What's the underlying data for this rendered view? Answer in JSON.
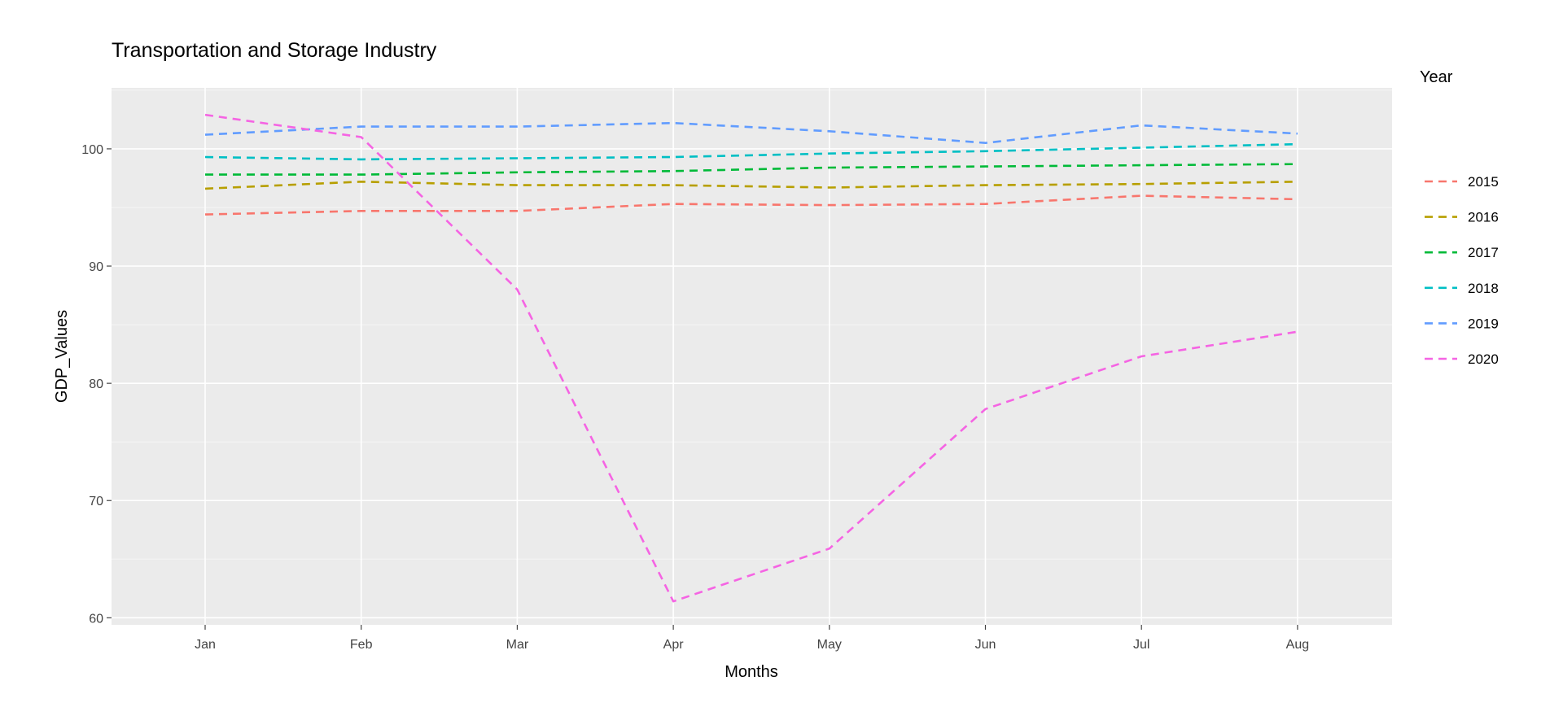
{
  "chart_data": {
    "type": "line",
    "title": "Transportation and Storage Industry",
    "xlabel": "Months",
    "ylabel": "GDP_Values",
    "categories": [
      "Jan",
      "Feb",
      "Mar",
      "Apr",
      "May",
      "Jun",
      "Jul",
      "Aug"
    ],
    "yticks": [
      60,
      70,
      80,
      90,
      100
    ],
    "ylim": [
      59.4,
      105.2
    ],
    "grid": true,
    "line_style": "dashed",
    "legend": {
      "title": "Year",
      "position": "right"
    },
    "series": [
      {
        "name": "2015",
        "color": "#F8766D",
        "values": [
          94.4,
          94.7,
          94.7,
          95.3,
          95.2,
          95.3,
          96.0,
          95.7
        ]
      },
      {
        "name": "2016",
        "color": "#B79F00",
        "values": [
          96.6,
          97.2,
          96.9,
          96.9,
          96.7,
          96.9,
          97.0,
          97.2
        ]
      },
      {
        "name": "2017",
        "color": "#00BA38",
        "values": [
          97.8,
          97.8,
          98.0,
          98.1,
          98.4,
          98.5,
          98.6,
          98.7
        ]
      },
      {
        "name": "2018",
        "color": "#00BFC4",
        "values": [
          99.3,
          99.1,
          99.2,
          99.3,
          99.6,
          99.8,
          100.1,
          100.4
        ]
      },
      {
        "name": "2019",
        "color": "#619CFF",
        "values": [
          101.2,
          101.9,
          101.9,
          102.2,
          101.5,
          100.5,
          102.0,
          101.3
        ]
      },
      {
        "name": "2020",
        "color": "#F564E3",
        "values": [
          102.9,
          101.0,
          88.0,
          61.4,
          65.9,
          77.8,
          82.3,
          84.4
        ]
      }
    ]
  }
}
